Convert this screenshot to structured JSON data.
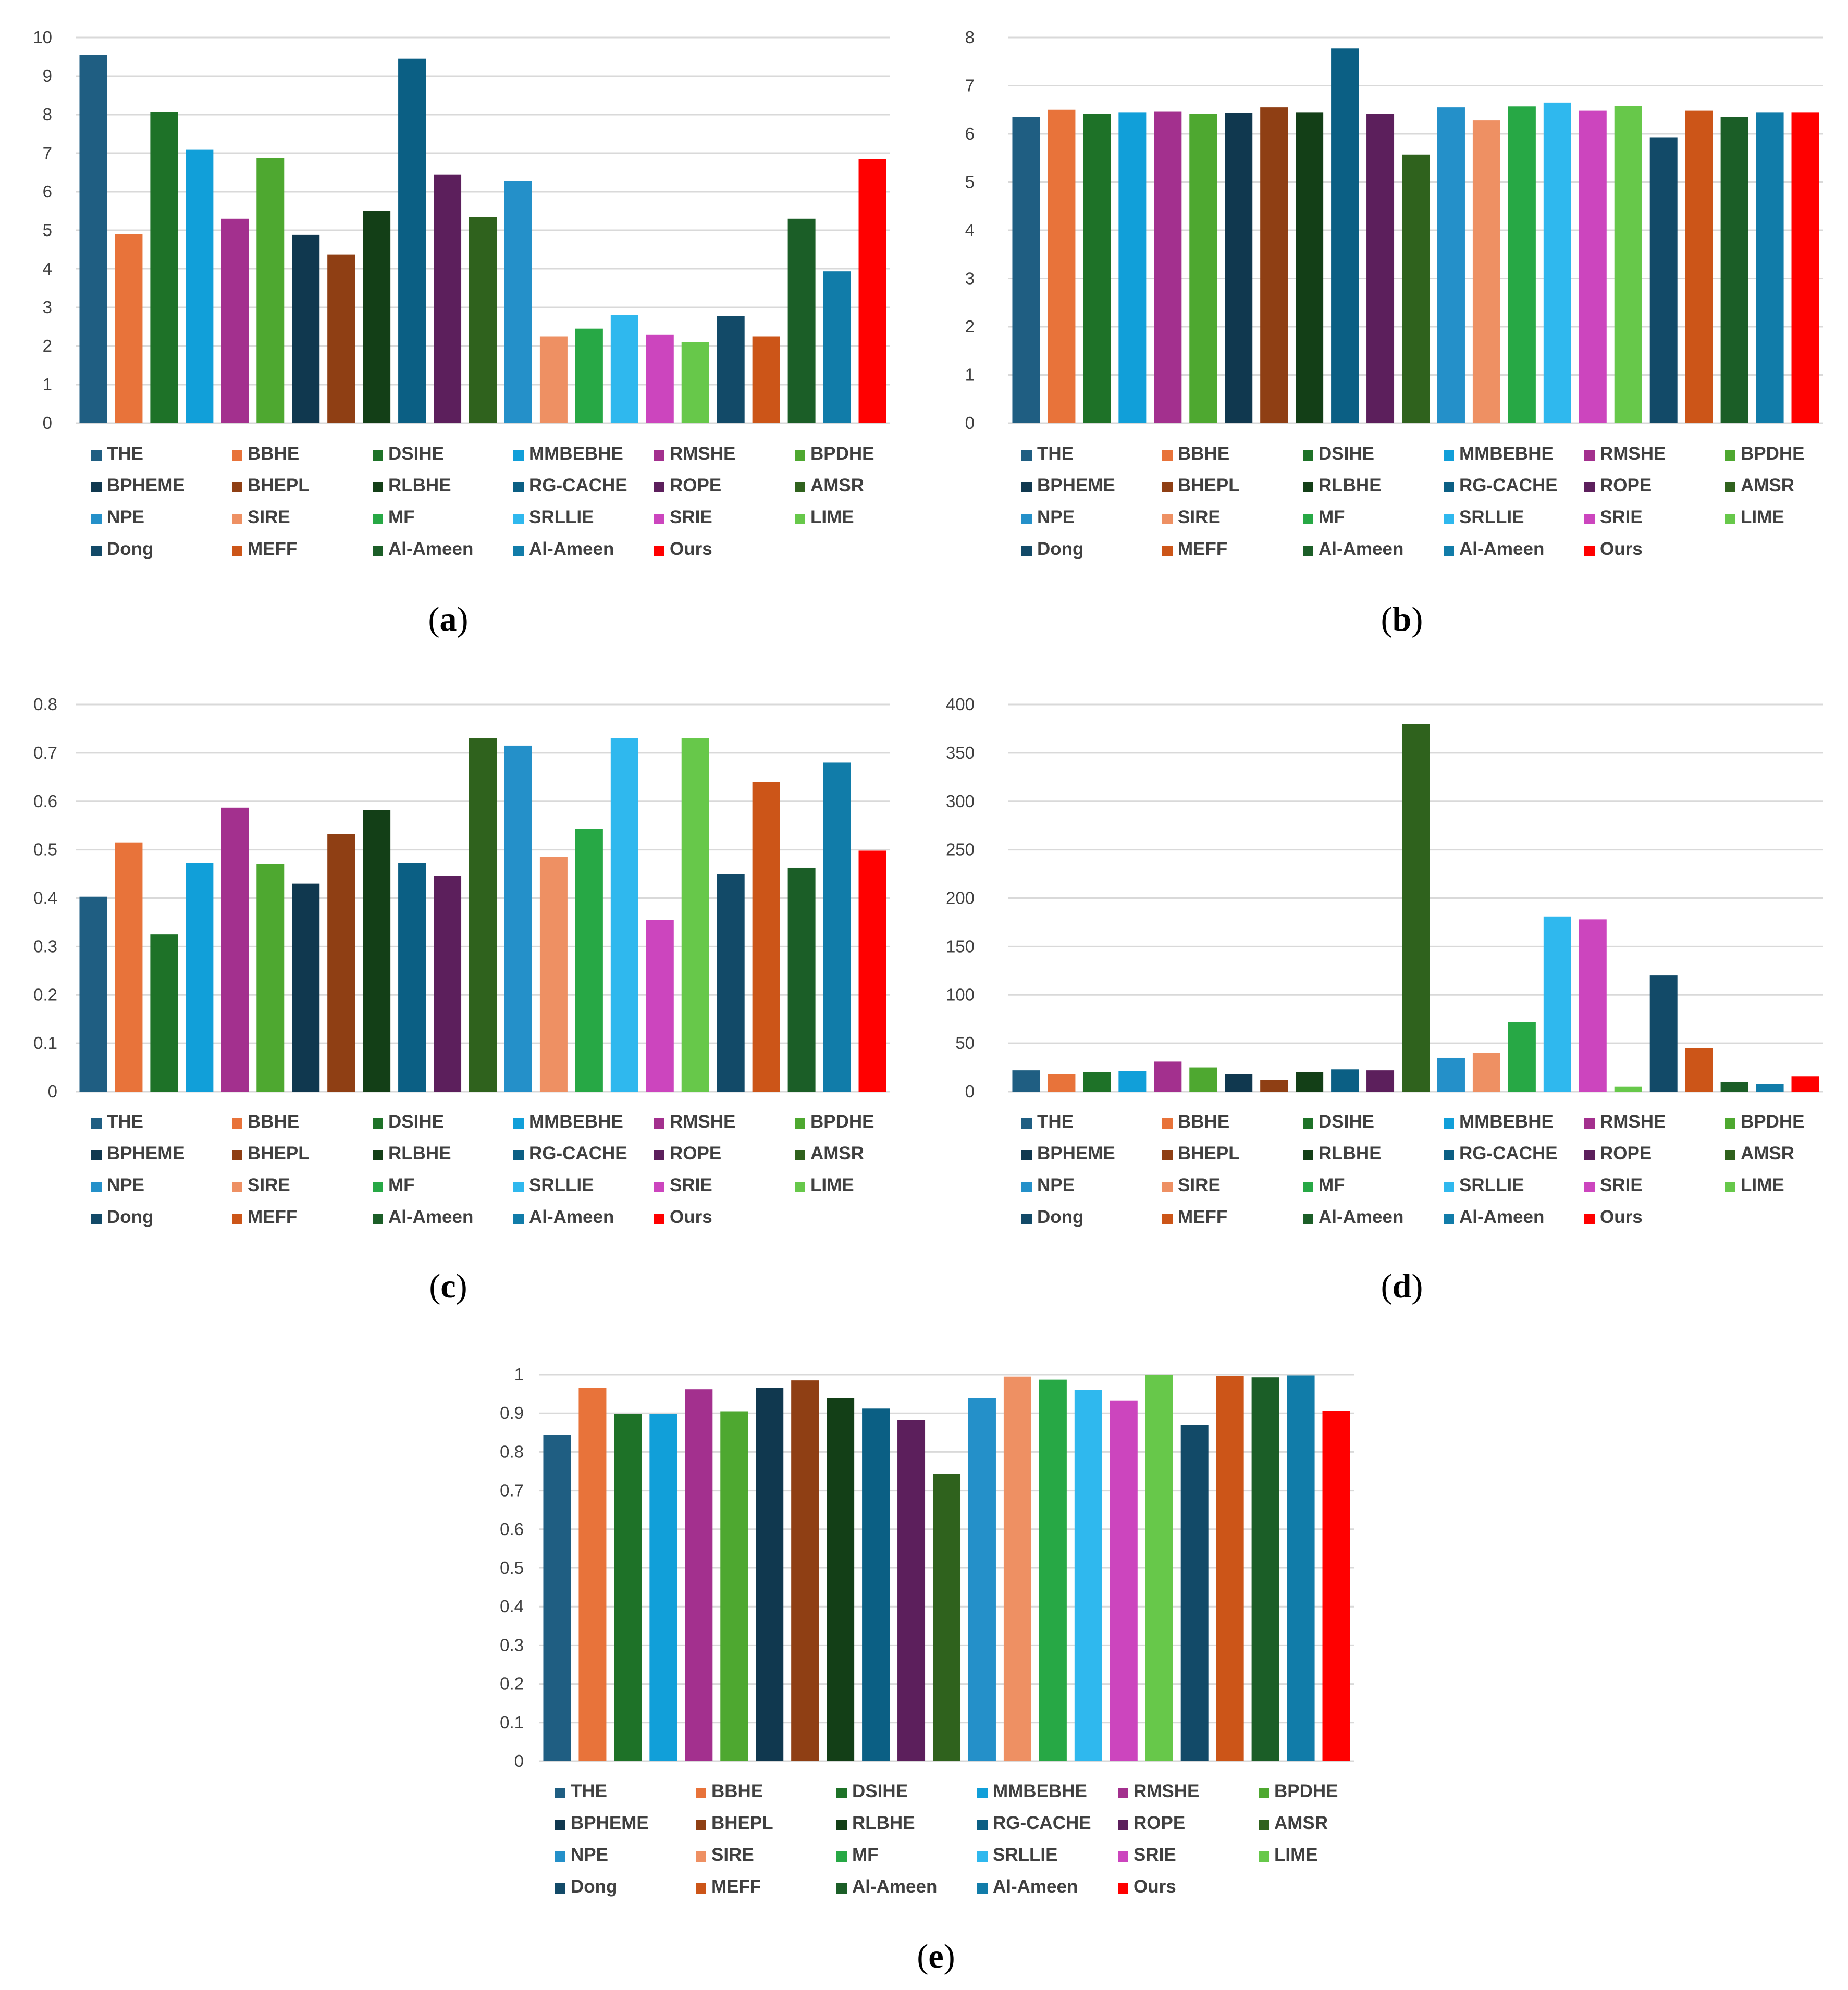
{
  "colors": [
    "#1f5e82",
    "#e8733a",
    "#1e7228",
    "#119fd9",
    "#a3308e",
    "#4ea830",
    "#10384f",
    "#8f3f14",
    "#133f17",
    "#0b5f84",
    "#5c1f5c",
    "#2f621d",
    "#2490c9",
    "#ee9063",
    "#27a845",
    "#2fb8ee",
    "#cc45be",
    "#67c84a",
    "#124a68",
    "#cc5518",
    "#1b5e27",
    "#117ca9",
    "#ff0000"
  ],
  "legend": [
    "THE",
    "BBHE",
    "DSIHE",
    "MMBEBHE",
    "RMSHE",
    "BPDHE",
    "BPHEME",
    "BHEPL",
    "RLBHE",
    "RG-CACHE",
    "ROPE",
    "AMSR",
    "NPE",
    "SIRE",
    "MF",
    "SRLLIE",
    "SRIE",
    "LIME",
    "Dong",
    "MEFF",
    "Al-Ameen",
    "Al-Ameen",
    "Ours"
  ],
  "chart_data": [
    {
      "type": "bar",
      "caption": "a",
      "categories": [
        "THE",
        "BBHE",
        "DSIHE",
        "MMBEBHE",
        "RMSHE",
        "BPDHE",
        "BPHEME",
        "BHEPL",
        "RLBHE",
        "RG-CACHE",
        "ROPE",
        "AMSR",
        "NPE",
        "SIRE",
        "MF",
        "SRLLIE",
        "SRIE",
        "LIME",
        "Dong",
        "MEFF",
        "Al-Ameen",
        "Al-Ameen",
        "Ours"
      ],
      "values": [
        9.55,
        4.9,
        8.08,
        7.1,
        5.3,
        6.87,
        4.88,
        4.37,
        5.5,
        9.45,
        6.45,
        5.35,
        6.28,
        2.25,
        2.45,
        2.8,
        2.3,
        2.1,
        2.78,
        2.25,
        5.3,
        3.93,
        6.85
      ],
      "ylim": [
        0,
        10
      ],
      "ticks": [
        "0",
        "1",
        "2",
        "3",
        "4",
        "5",
        "6",
        "7",
        "8",
        "9",
        "10"
      ]
    },
    {
      "type": "bar",
      "caption": "b",
      "categories": [
        "THE",
        "BBHE",
        "DSIHE",
        "MMBEBHE",
        "RMSHE",
        "BPDHE",
        "BPHEME",
        "BHEPL",
        "RLBHE",
        "RG-CACHE",
        "ROPE",
        "AMSR",
        "NPE",
        "SIRE",
        "MF",
        "SRLLIE",
        "SRIE",
        "LIME",
        "Dong",
        "MEFF",
        "Al-Ameen",
        "Al-Ameen",
        "Ours"
      ],
      "values": [
        6.35,
        6.5,
        6.42,
        6.45,
        6.47,
        6.42,
        6.44,
        6.55,
        6.45,
        7.77,
        6.42,
        5.57,
        6.55,
        6.28,
        6.57,
        6.65,
        6.48,
        6.58,
        5.93,
        6.48,
        6.35,
        6.45,
        6.45
      ],
      "ylim": [
        0,
        8
      ],
      "ticks": [
        "0",
        "1",
        "2",
        "3",
        "4",
        "5",
        "6",
        "7",
        "8"
      ]
    },
    {
      "type": "bar",
      "caption": "c",
      "categories": [
        "THE",
        "BBHE",
        "DSIHE",
        "MMBEBHE",
        "RMSHE",
        "BPDHE",
        "BPHEME",
        "BHEPL",
        "RLBHE",
        "RG-CACHE",
        "ROPE",
        "AMSR",
        "NPE",
        "SIRE",
        "MF",
        "SRLLIE",
        "SRIE",
        "LIME",
        "Dong",
        "MEFF",
        "Al-Ameen",
        "Al-Ameen",
        "Ours"
      ],
      "values": [
        0.403,
        0.515,
        0.325,
        0.472,
        0.587,
        0.47,
        0.43,
        0.532,
        0.582,
        0.472,
        0.445,
        0.73,
        0.715,
        0.485,
        0.543,
        0.73,
        0.355,
        0.73,
        0.45,
        0.64,
        0.463,
        0.68,
        0.498
      ],
      "ylim": [
        0,
        0.8
      ],
      "ticks": [
        "0",
        "0.1",
        "0.2",
        "0.3",
        "0.4",
        "0.5",
        "0.6",
        "0.7",
        "0.8"
      ]
    },
    {
      "type": "bar",
      "caption": "d",
      "categories": [
        "THE",
        "BBHE",
        "DSIHE",
        "MMBEBHE",
        "RMSHE",
        "BPDHE",
        "BPHEME",
        "BHEPL",
        "RLBHE",
        "RG-CACHE",
        "ROPE",
        "AMSR",
        "NPE",
        "SIRE",
        "MF",
        "SRLLIE",
        "SRIE",
        "LIME",
        "Dong",
        "MEFF",
        "Al-Ameen",
        "Al-Ameen",
        "Ours"
      ],
      "values": [
        22,
        18,
        20,
        21,
        31,
        25,
        18,
        12,
        20,
        23,
        22,
        380,
        35,
        40,
        72,
        181,
        178,
        5,
        120,
        45,
        10,
        8,
        16
      ],
      "ylim": [
        0,
        400
      ],
      "ticks": [
        "0",
        "50",
        "100",
        "150",
        "200",
        "250",
        "300",
        "350",
        "400"
      ]
    },
    {
      "type": "bar",
      "caption": "e",
      "categories": [
        "THE",
        "BBHE",
        "DSIHE",
        "MMBEBHE",
        "RMSHE",
        "BPDHE",
        "BPHEME",
        "BHEPL",
        "RLBHE",
        "RG-CACHE",
        "ROPE",
        "AMSR",
        "NPE",
        "SIRE",
        "MF",
        "SRLLIE",
        "SRIE",
        "LIME",
        "Dong",
        "MEFF",
        "Al-Ameen",
        "Al-Ameen",
        "Ours"
      ],
      "values": [
        0.845,
        0.965,
        0.898,
        0.898,
        0.962,
        0.905,
        0.965,
        0.985,
        0.94,
        0.912,
        0.882,
        0.743,
        0.94,
        0.995,
        0.987,
        0.96,
        0.933,
        1.0,
        0.87,
        0.997,
        0.993,
        0.998,
        0.907
      ],
      "ylim": [
        0,
        1
      ],
      "ticks": [
        "0",
        "0.1",
        "0.2",
        "0.3",
        "0.4",
        "0.5",
        "0.6",
        "0.7",
        "0.8",
        "0.9",
        "1"
      ]
    }
  ]
}
